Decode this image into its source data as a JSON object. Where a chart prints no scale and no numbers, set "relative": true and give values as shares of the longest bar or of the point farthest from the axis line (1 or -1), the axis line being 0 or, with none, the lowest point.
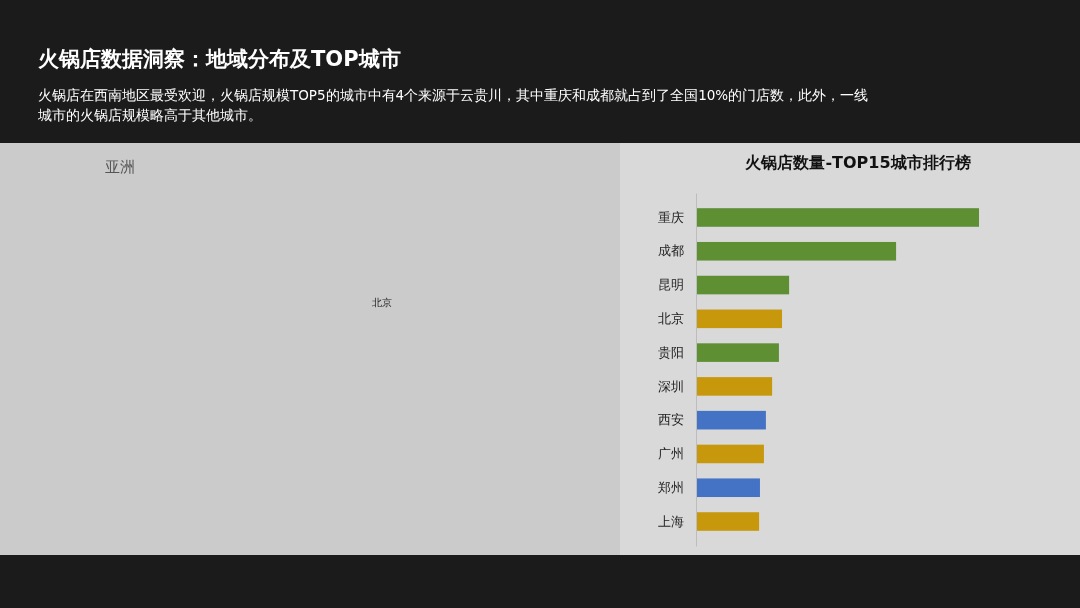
{
  "chart_data": {
    "type": "bar",
    "orientation": "horizontal",
    "relative": true,
    "title": "火锅店数据洞察：地域分布及TOP城市",
    "subtitle": "火锅店在西南地区最受欢迎，火锅店规模TOP5的城市中有4个来源于云贵川，其中重庆和成都就占到了全国10%的门店数，此外，一线城市的火锅店规模略高于其他城市。",
    "annotations": [
      "火锅店数量-TOP15城市排行榜",
      "亚洲",
      "北京"
    ],
    "categories": [
      "重庆",
      "成都",
      "昆明",
      "北京",
      "贵阳",
      "深圳",
      "西安",
      "广州",
      "郑州",
      "上海"
    ],
    "values": [
      1,
      0.707,
      0.329,
      0.304,
      0.293,
      0.269,
      0.247,
      0.24,
      0.226,
      0.223
    ],
    "colors": [
      "#5e8f32",
      "#5e8f32",
      "#5e8f32",
      "#c8980c",
      "#5e8f32",
      "#c8980c",
      "#4472c4",
      "#c8980c",
      "#4472c4",
      "#c8980c"
    ]
  }
}
